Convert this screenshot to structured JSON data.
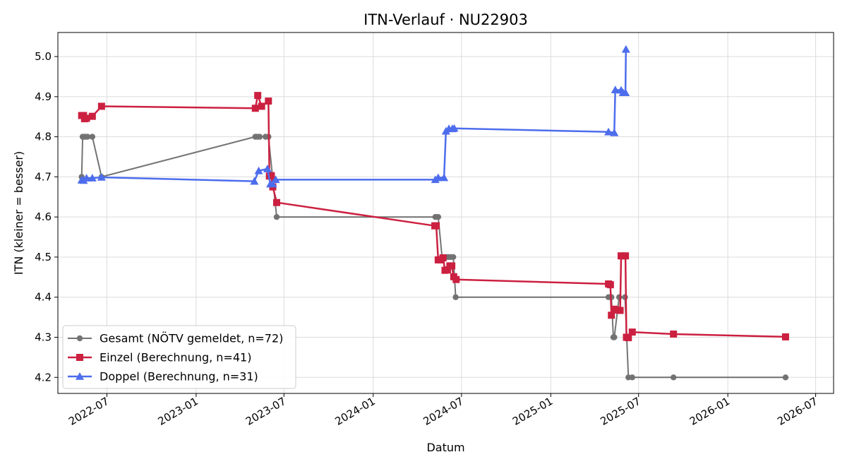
{
  "chart_data": {
    "type": "line",
    "title": "ITN-Verlauf · NU22903",
    "xlabel": "Datum",
    "ylabel": "ITN  (kleiner = besser)",
    "x_scale": "date",
    "xlim": [
      "2022-03-22",
      "2026-08-07"
    ],
    "ylim": [
      4.16,
      5.06
    ],
    "x_ticks": [
      "2022-07",
      "2023-01",
      "2023-07",
      "2024-01",
      "2024-07",
      "2025-01",
      "2025-07",
      "2026-01",
      "2026-07"
    ],
    "y_ticks": [
      "4.2",
      "4.3",
      "4.4",
      "4.5",
      "4.6",
      "4.7",
      "4.8",
      "4.9",
      "5.0"
    ],
    "grid": true,
    "legend_position": "lower-left",
    "series": [
      {
        "name": "Gesamt (NÖTV gemeldet, n=72)",
        "color": "#404040",
        "marker": "circle",
        "points": [
          [
            "2022-05-10",
            4.7
          ],
          [
            "2022-05-12",
            4.8
          ],
          [
            "2022-05-15",
            4.8
          ],
          [
            "2022-05-18",
            4.8
          ],
          [
            "2022-05-22",
            4.8
          ],
          [
            "2022-06-01",
            4.8
          ],
          [
            "2022-06-20",
            4.7
          ],
          [
            "2023-05-03",
            4.8
          ],
          [
            "2023-05-07",
            4.8
          ],
          [
            "2023-05-12",
            4.8
          ],
          [
            "2023-05-24",
            4.8
          ],
          [
            "2023-05-30",
            4.8
          ],
          [
            "2023-06-16",
            4.6
          ],
          [
            "2024-05-08",
            4.6
          ],
          [
            "2024-05-10",
            4.6
          ],
          [
            "2024-05-14",
            4.6
          ],
          [
            "2024-05-22",
            4.5
          ],
          [
            "2024-05-26",
            4.5
          ],
          [
            "2024-05-30",
            4.5
          ],
          [
            "2024-06-04",
            4.5
          ],
          [
            "2024-06-09",
            4.5
          ],
          [
            "2024-06-14",
            4.5
          ],
          [
            "2024-06-19",
            4.4
          ],
          [
            "2025-04-30",
            4.4
          ],
          [
            "2025-05-06",
            4.4
          ],
          [
            "2025-05-10",
            4.3
          ],
          [
            "2025-05-12",
            4.3
          ],
          [
            "2025-05-22",
            4.4
          ],
          [
            "2025-06-03",
            4.4
          ],
          [
            "2025-06-10",
            4.2
          ],
          [
            "2025-06-18",
            4.2
          ],
          [
            "2025-09-11",
            4.2
          ],
          [
            "2026-04-30",
            4.2
          ]
        ]
      },
      {
        "name": "Einzel (Berechnung, n=41)",
        "color": "#cc2040",
        "marker": "square",
        "points": [
          [
            "2022-05-10",
            4.853
          ],
          [
            "2022-05-14",
            4.853
          ],
          [
            "2022-05-16",
            4.845
          ],
          [
            "2022-05-20",
            4.846
          ],
          [
            "2022-06-01",
            4.851
          ],
          [
            "2022-06-20",
            4.876
          ],
          [
            "2023-05-03",
            4.871
          ],
          [
            "2023-05-08",
            4.903
          ],
          [
            "2023-05-16",
            4.876
          ],
          [
            "2023-05-30",
            4.889
          ],
          [
            "2023-06-01",
            4.702
          ],
          [
            "2023-06-05",
            4.703
          ],
          [
            "2023-06-08",
            4.675
          ],
          [
            "2023-06-16",
            4.636
          ],
          [
            "2024-05-07",
            4.578
          ],
          [
            "2024-05-10",
            4.578
          ],
          [
            "2024-05-14",
            4.493
          ],
          [
            "2024-05-20",
            4.493
          ],
          [
            "2024-05-24",
            4.498
          ],
          [
            "2024-05-28",
            4.467
          ],
          [
            "2024-06-02",
            4.468
          ],
          [
            "2024-06-07",
            4.478
          ],
          [
            "2024-06-11",
            4.478
          ],
          [
            "2024-06-15",
            4.451
          ],
          [
            "2024-06-20",
            4.444
          ],
          [
            "2025-04-30",
            4.433
          ],
          [
            "2025-05-04",
            4.431
          ],
          [
            "2025-05-06",
            4.355
          ],
          [
            "2025-05-12",
            4.37
          ],
          [
            "2025-05-16",
            4.368
          ],
          [
            "2025-05-24",
            4.367
          ],
          [
            "2025-05-26",
            4.503
          ],
          [
            "2025-06-04",
            4.503
          ],
          [
            "2025-06-06",
            4.3
          ],
          [
            "2025-06-10",
            4.299
          ],
          [
            "2025-06-18",
            4.313
          ],
          [
            "2025-09-11",
            4.308
          ],
          [
            "2026-04-30",
            4.301
          ]
        ]
      },
      {
        "name": "Doppel (Berechnung, n=31)",
        "color": "#4d6ded",
        "marker": "triangle",
        "points": [
          [
            "2022-05-10",
            4.692
          ],
          [
            "2022-05-14",
            4.691
          ],
          [
            "2022-05-20",
            4.697
          ],
          [
            "2022-06-01",
            4.697
          ],
          [
            "2022-06-20",
            4.699
          ],
          [
            "2023-05-01",
            4.689
          ],
          [
            "2023-05-10",
            4.715
          ],
          [
            "2023-05-28",
            4.72
          ],
          [
            "2023-06-03",
            4.682
          ],
          [
            "2023-06-08",
            4.682
          ],
          [
            "2023-06-14",
            4.693
          ],
          [
            "2024-05-08",
            4.693
          ],
          [
            "2024-05-14",
            4.698
          ],
          [
            "2024-05-26",
            4.698
          ],
          [
            "2024-05-30",
            4.814
          ],
          [
            "2024-06-05",
            4.82
          ],
          [
            "2024-06-12",
            4.82
          ],
          [
            "2024-06-16",
            4.821
          ],
          [
            "2025-04-30",
            4.812
          ],
          [
            "2025-05-12",
            4.81
          ],
          [
            "2025-05-14",
            4.917
          ],
          [
            "2025-05-26",
            4.916
          ],
          [
            "2025-05-30",
            4.91
          ],
          [
            "2025-06-04",
            4.91
          ],
          [
            "2025-06-05",
            5.018
          ]
        ]
      }
    ]
  }
}
